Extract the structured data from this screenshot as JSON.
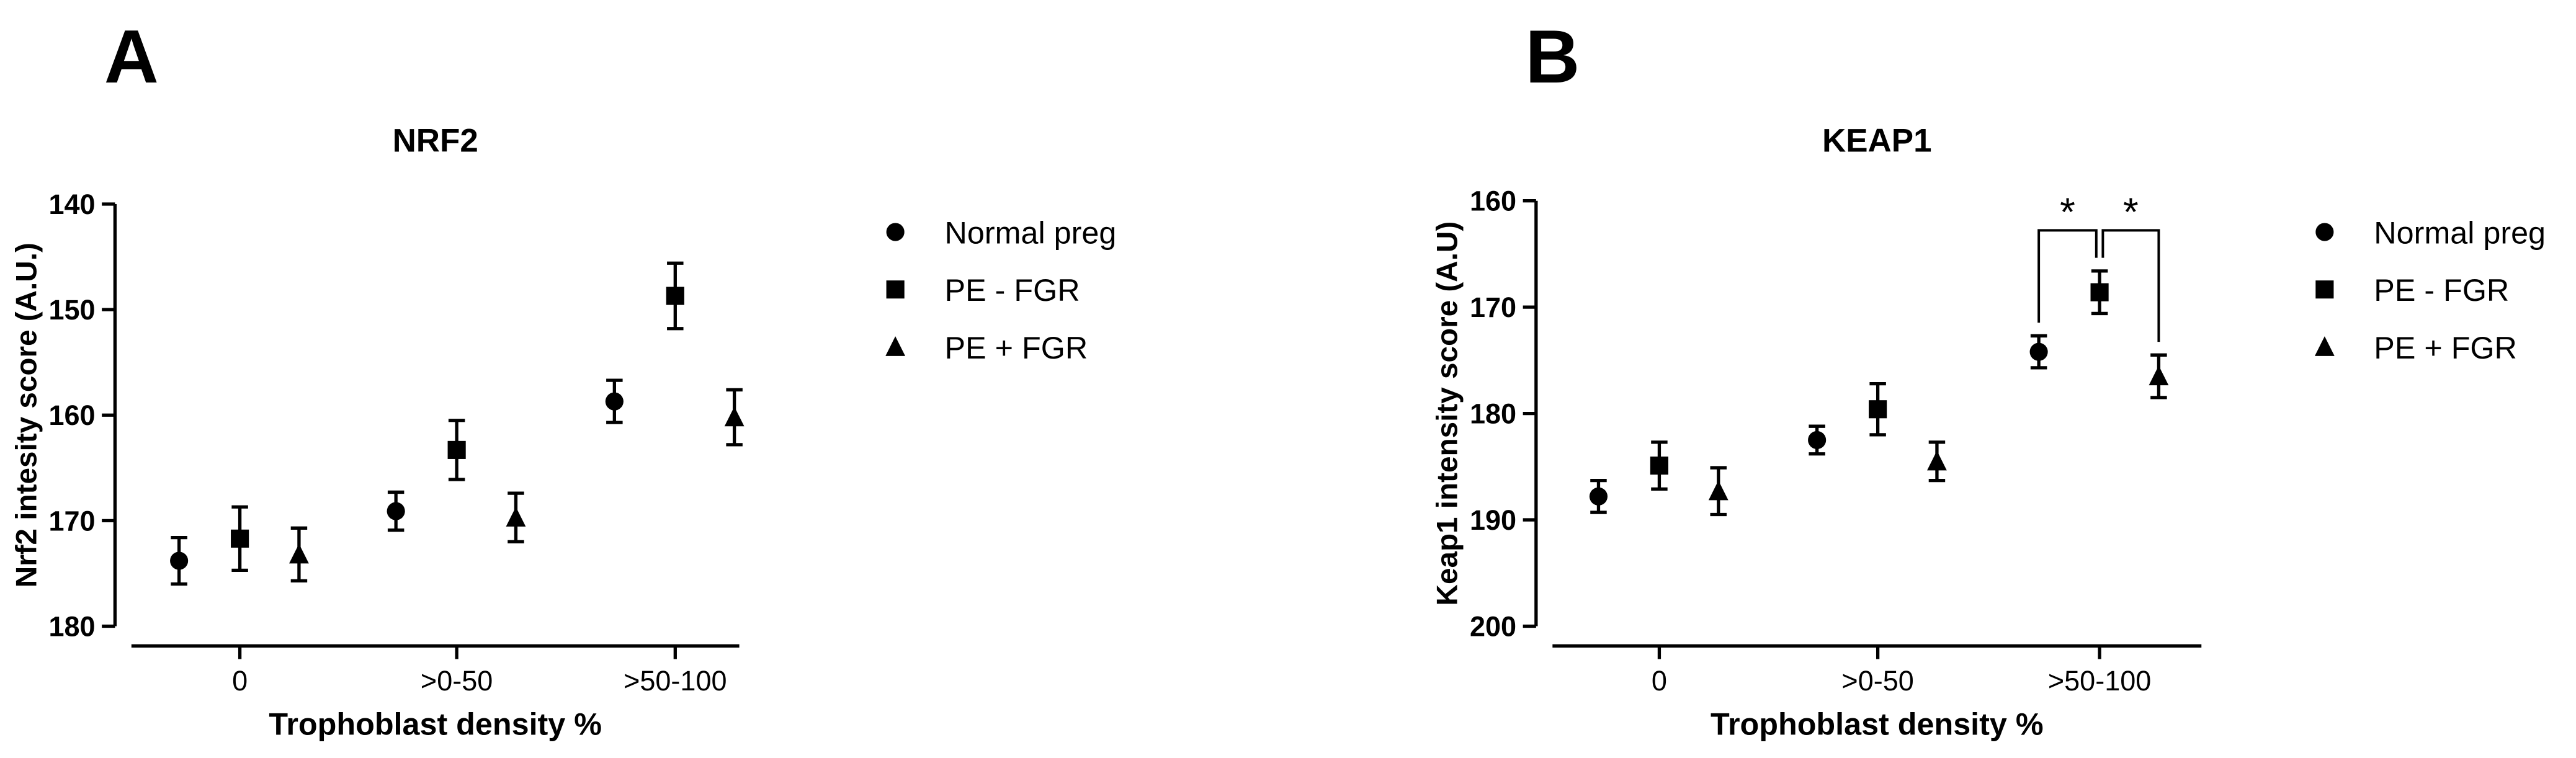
{
  "chart_data": [
    {
      "type": "errorbar",
      "panel_label": "A",
      "title": "NRF2",
      "x_label": "Trophoblast density %",
      "y_label": "Nrf2 intesity score (A.U.)",
      "categories": [
        "0",
        ">0-50",
        ">50-100"
      ],
      "ylim": [
        180,
        140
      ],
      "yticks": [
        140,
        150,
        160,
        170,
        180
      ],
      "series": [
        {
          "name": "Normal preg",
          "color": "#000000",
          "marker": "circle",
          "values": [
            173.8,
            169.1,
            158.7
          ],
          "errors": [
            2.2,
            1.8,
            2.0
          ]
        },
        {
          "name": "PE - FGR",
          "color": "#000000",
          "marker": "square",
          "values": [
            171.7,
            163.3,
            148.7
          ],
          "errors": [
            3.0,
            2.8,
            3.1
          ]
        },
        {
          "name": "PE + FGR",
          "color": "#000000",
          "marker": "triangle",
          "values": [
            173.2,
            169.7,
            160.2
          ],
          "errors": [
            2.5,
            2.3,
            2.6
          ]
        }
      ],
      "annotations": []
    },
    {
      "type": "errorbar",
      "panel_label": "B",
      "title": "KEAP1",
      "x_label": "Trophoblast density %",
      "y_label": "Keap1 intensity score (A.U)",
      "categories": [
        "0",
        ">0-50",
        ">50-100"
      ],
      "ylim": [
        200,
        160
      ],
      "yticks": [
        160,
        170,
        180,
        190,
        200
      ],
      "series": [
        {
          "name": "Normal preg",
          "color": "#000000",
          "marker": "circle",
          "values": [
            187.8,
            182.5,
            174.2
          ],
          "errors": [
            1.5,
            1.3,
            1.5
          ]
        },
        {
          "name": "PE - FGR",
          "color": "#000000",
          "marker": "square",
          "values": [
            184.9,
            179.6,
            168.6
          ],
          "errors": [
            2.2,
            2.4,
            2.0
          ]
        },
        {
          "name": "PE + FGR",
          "color": "#000000",
          "marker": "triangle",
          "values": [
            187.3,
            184.5,
            176.5
          ],
          "errors": [
            2.2,
            1.8,
            2.0
          ]
        }
      ],
      "annotations": [
        "*",
        "*"
      ]
    }
  ]
}
